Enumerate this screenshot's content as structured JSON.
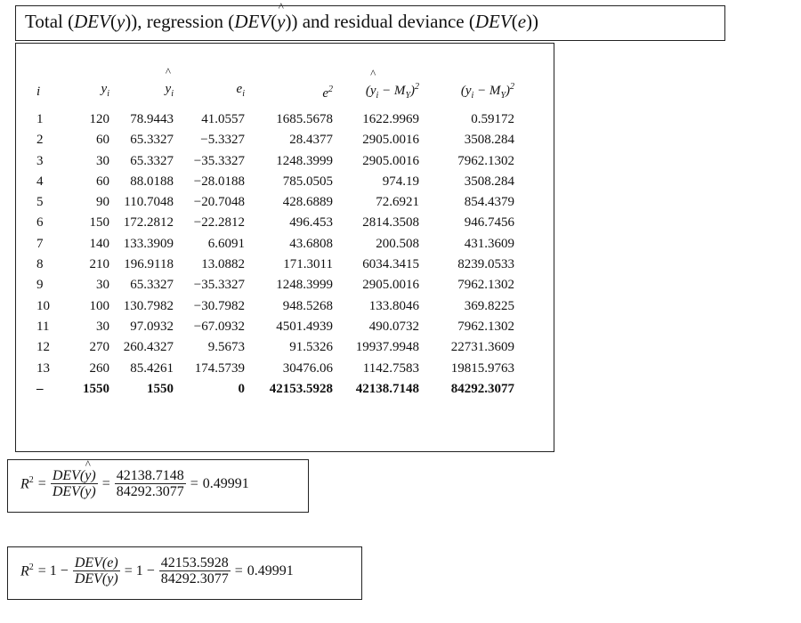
{
  "title": {
    "p1": "Total (",
    "dev_y": "DEV",
    "p2": "(",
    "y": "y",
    "p3": ")), regression (",
    "dev_yhat": "DEV",
    "p4": "(",
    "yhat": "y",
    "p5": ")) and residual deviance (",
    "dev_e": "DEV",
    "p6": "(",
    "e": "e",
    "p7": "))"
  },
  "table": {
    "headers": {
      "i": "i",
      "y": "y",
      "y_sub": "i",
      "yhat": "y",
      "yhat_sub": "i",
      "e": "e",
      "e_sub": "i",
      "e2": "e",
      "e2_sup": "2",
      "e2_sub": "i",
      "reg": "(y",
      "reg_sub": "i",
      "reg_mid": " − M",
      "reg_msub": "Y",
      "reg_end": ")",
      "reg_sup": "2",
      "tot": "(y",
      "tot_sub": "i",
      "tot_mid": " − M",
      "tot_msub": "Y",
      "tot_end": ")",
      "tot_sup": "2"
    },
    "rows": [
      {
        "i": "1",
        "y": "120",
        "yhat": "78.9443",
        "e": "41.0557",
        "e2": "1685.5678",
        "reg": "1622.9969",
        "tot": "0.59172"
      },
      {
        "i": "2",
        "y": "60",
        "yhat": "65.3327",
        "e": "−5.3327",
        "e2": "28.4377",
        "reg": "2905.0016",
        "tot": "3508.284"
      },
      {
        "i": "3",
        "y": "30",
        "yhat": "65.3327",
        "e": "−35.3327",
        "e2": "1248.3999",
        "reg": "2905.0016",
        "tot": "7962.1302"
      },
      {
        "i": "4",
        "y": "60",
        "yhat": "88.0188",
        "e": "−28.0188",
        "e2": "785.0505",
        "reg": "974.19",
        "tot": "3508.284"
      },
      {
        "i": "5",
        "y": "90",
        "yhat": "110.7048",
        "e": "−20.7048",
        "e2": "428.6889",
        "reg": "72.6921",
        "tot": "854.4379"
      },
      {
        "i": "6",
        "y": "150",
        "yhat": "172.2812",
        "e": "−22.2812",
        "e2": "496.453",
        "reg": "2814.3508",
        "tot": "946.7456"
      },
      {
        "i": "7",
        "y": "140",
        "yhat": "133.3909",
        "e": "6.6091",
        "e2": "43.6808",
        "reg": "200.508",
        "tot": "431.3609"
      },
      {
        "i": "8",
        "y": "210",
        "yhat": "196.9118",
        "e": "13.0882",
        "e2": "171.3011",
        "reg": "6034.3415",
        "tot": "8239.0533"
      },
      {
        "i": "9",
        "y": "30",
        "yhat": "65.3327",
        "e": "−35.3327",
        "e2": "1248.3999",
        "reg": "2905.0016",
        "tot": "7962.1302"
      },
      {
        "i": "10",
        "y": "100",
        "yhat": "130.7982",
        "e": "−30.7982",
        "e2": "948.5268",
        "reg": "133.8046",
        "tot": "369.8225"
      },
      {
        "i": "11",
        "y": "30",
        "yhat": "97.0932",
        "e": "−67.0932",
        "e2": "4501.4939",
        "reg": "490.0732",
        "tot": "7962.1302"
      },
      {
        "i": "12",
        "y": "270",
        "yhat": "260.4327",
        "e": "9.5673",
        "e2": "91.5326",
        "reg": "19937.9948",
        "tot": "22731.3609"
      },
      {
        "i": "13",
        "y": "260",
        "yhat": "85.4261",
        "e": "174.5739",
        "e2": "30476.06",
        "reg": "1142.7583",
        "tot": "19815.9763"
      }
    ],
    "total": {
      "i": "–",
      "y": "1550",
      "yhat": "1550",
      "e": "0",
      "e2": "42153.5928",
      "reg": "42138.7148",
      "tot": "84292.3077"
    }
  },
  "formula1": {
    "lhs": "R",
    "lhs_sup": "2",
    "eq": "=",
    "num1": "DEV(y)",
    "den1": "DEV(y)",
    "eq2": "=",
    "num2": "42138.7148",
    "den2": "84292.3077",
    "eq3": "=",
    "result": "0.49991"
  },
  "formula2": {
    "lhs": "R",
    "lhs_sup": "2",
    "eq": "= 1 −",
    "num1": "DEV(e)",
    "den1": "DEV(y)",
    "eq2": "= 1 −",
    "num2": "42153.5928",
    "den2": "84292.3077",
    "eq3": "=",
    "result": "0.49991"
  }
}
